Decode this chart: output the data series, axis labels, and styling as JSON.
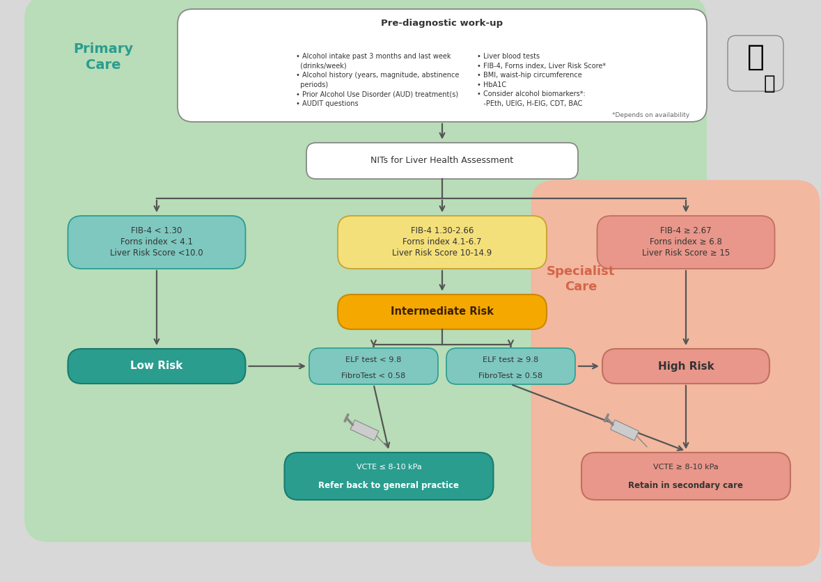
{
  "bg_primary": "#b8ddb8",
  "bg_specialist": "#f2b8a0",
  "bg_outer": "#d8d8d8",
  "primary_care_label": "Primary\nCare",
  "specialist_care_label": "Specialist\nCare",
  "prediag_title": "Pre-diagnostic work-up",
  "prediag_left_lines": [
    "• Alcohol intake past 3 months and last week",
    "  (drinks/week)",
    "• Alcohol history (years, magnitude, abstinence",
    "  periods)",
    "• Prior Alcohol Use Disorder (AUD) treatment(s)",
    "• AUDIT questions"
  ],
  "prediag_right_lines": [
    "• Liver blood tests",
    "• FIB-4, Forns index, Liver Risk Score*",
    "• BMI, waist-hip circumference",
    "• HbA1C",
    "• Consider alcohol biomarkers*:",
    "   -PEth, UEIG, H-EIG, CDT, BAC"
  ],
  "prediag_footnote": "*Depends on availability",
  "nit_label": "NITs for Liver Health Assessment",
  "box_low_fib": "FIB-4 < 1.30\nForns index < 4.1\nLiver Risk Score <10.0",
  "box_mid_fib": "FIB-4 1.30-2.66\nForns index 4.1-6.7\nLiver Risk Score 10-14.9",
  "box_high_fib": "FIB-4 ≥ 2.67\nForns index ≥ 6.8\nLiver Risk Score ≥ 15",
  "box_intermediate": "Intermediate Risk",
  "box_low_risk": "Low Risk",
  "box_high_risk": "High Risk",
  "box_elf_low_l1": "ELF test < 9.8",
  "box_elf_low_l2": "FibroTest < 0.58",
  "box_elf_high_l1": "ELF test ≥ 9.8",
  "box_elf_high_l2": "FibroTest ≥ 0.58",
  "box_vcte_low_l1": "VCTE ≤ 8-10 kPa",
  "box_vcte_low_l2": "Refer back to general practice",
  "box_vcte_high_l1": "VCTE ≥ 8-10 kPa",
  "box_vcte_high_l2": "Retain in secondary care",
  "color_teal_light": "#7EC8C0",
  "color_teal_dark": "#2A9D8F",
  "color_yellow_light": "#F4E07A",
  "color_yellow_dark": "#F5A800",
  "color_red_light": "#E8978A",
  "color_white": "#FFFFFF",
  "color_arrow": "#555555",
  "color_primary_text": "#2A9D8F",
  "color_specialist_text": "#D4654A"
}
